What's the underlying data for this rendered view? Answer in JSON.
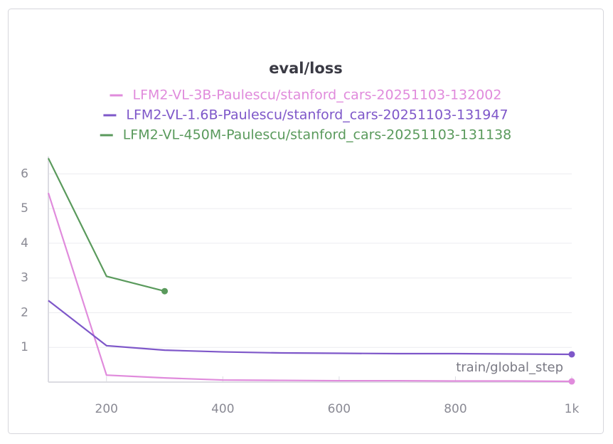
{
  "chart_data": {
    "type": "line",
    "title": "eval/loss",
    "x_label": "train/global_step",
    "series": [
      {
        "name": "LFM2-VL-3B-Paulescu/stanford_cars-20251103-132002",
        "color": "#e08bdc",
        "x": [
          100,
          200,
          300,
          400,
          500,
          600,
          700,
          800,
          900,
          1000
        ],
        "values": [
          5.45,
          0.2,
          0.12,
          0.06,
          0.05,
          0.04,
          0.04,
          0.03,
          0.03,
          0.02
        ]
      },
      {
        "name": "LFM2-VL-1.6B-Paulescu/stanford_cars-20251103-131947",
        "color": "#7e57c9",
        "x": [
          100,
          200,
          300,
          400,
          500,
          600,
          700,
          800,
          900,
          1000
        ],
        "values": [
          2.35,
          1.05,
          0.92,
          0.87,
          0.84,
          0.83,
          0.82,
          0.82,
          0.81,
          0.8
        ]
      },
      {
        "name": "LFM2-VL-450M-Paulescu/stanford_cars-20251103-131138",
        "color": "#5a9a5c",
        "x": [
          100,
          200,
          300
        ],
        "values": [
          6.45,
          3.05,
          2.62
        ]
      }
    ],
    "xlim": [
      100,
      1000
    ],
    "xticks": [
      200,
      400,
      600,
      800,
      {
        "value": 1000,
        "label": "1k"
      }
    ],
    "ylim": [
      0,
      6.5
    ],
    "yticks": [
      1,
      2,
      3,
      4,
      5,
      6
    ],
    "grid": true
  }
}
